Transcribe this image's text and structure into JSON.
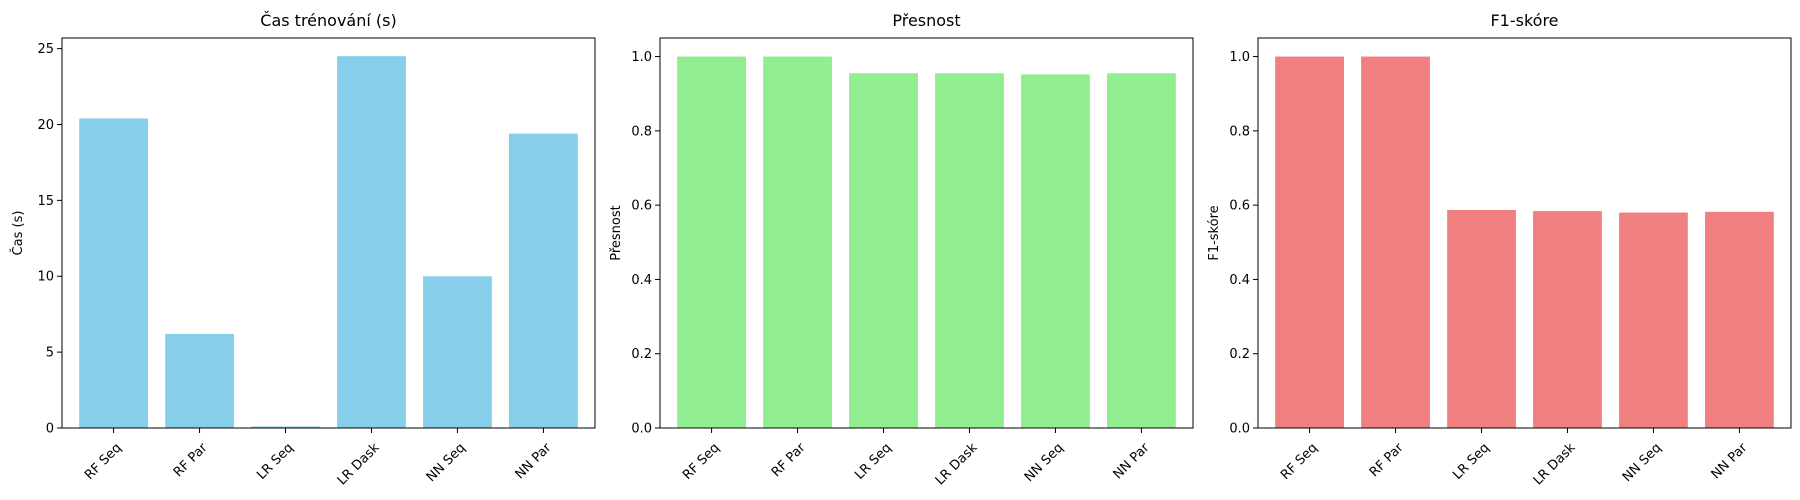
{
  "chart_data": [
    {
      "type": "bar",
      "title": "Čas trénování (s)",
      "xlabel": "",
      "ylabel": "Čas (s)",
      "categories": [
        "RF Seq",
        "RF Par",
        "LR Seq",
        "LR Dask",
        "NN Seq",
        "NN Par"
      ],
      "values": [
        20.4,
        6.2,
        0.1,
        24.5,
        10.0,
        19.4
      ],
      "ylim": [
        0,
        25.7
      ],
      "yticks": [
        0,
        5,
        10,
        15,
        20,
        25
      ],
      "color": "#87CEEB",
      "grid": false
    },
    {
      "type": "bar",
      "title": "Přesnost",
      "xlabel": "",
      "ylabel": "Přesnost",
      "categories": [
        "RF Seq",
        "RF Par",
        "LR Seq",
        "LR Dask",
        "NN Seq",
        "NN Par"
      ],
      "values": [
        1.0,
        1.0,
        0.955,
        0.955,
        0.952,
        0.955
      ],
      "ylim": [
        0,
        1.05
      ],
      "yticks": [
        0.0,
        0.2,
        0.4,
        0.6,
        0.8,
        1.0
      ],
      "color": "#90EE90",
      "grid": false
    },
    {
      "type": "bar",
      "title": "F1-skóre",
      "xlabel": "",
      "ylabel": "F1-skóre",
      "categories": [
        "RF Seq",
        "RF Par",
        "LR Seq",
        "LR Dask",
        "NN Seq",
        "NN Par"
      ],
      "values": [
        1.0,
        1.0,
        0.587,
        0.584,
        0.58,
        0.582
      ],
      "ylim": [
        0,
        1.05
      ],
      "yticks": [
        0.0,
        0.2,
        0.4,
        0.6,
        0.8,
        1.0
      ],
      "color": "#F08080",
      "grid": false
    }
  ]
}
